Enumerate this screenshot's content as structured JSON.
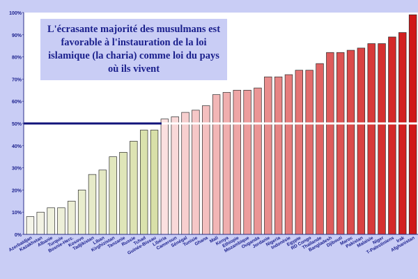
{
  "chart_data": {
    "type": "bar",
    "title": "L'écrasante majorité des musulmans est\nfavorable à l'instauration de la loi\nislamique (la charia) comme loi du pays\noù ils vivent",
    "categories": [
      "Azerbaïdjan",
      "Kazakhstan",
      "Albanie",
      "Turquie",
      "Bosnie-Herz.",
      "Kosovo",
      "Tadjikistan",
      "Liban",
      "Kirghizistan",
      "Tanzanie",
      "Russie",
      "Tchad",
      "Guinée-Bissau",
      "Libéria",
      "Cameroun",
      "Sénégal",
      "Tunisie",
      "Ghana",
      "Mali",
      "Kenya",
      "Ethiopie",
      "Mozambique",
      "Ouganda",
      "Jordanie",
      "Nigeria",
      "Indonésie",
      "Egypte",
      "RD Congo",
      "Thaïlande",
      "Bangladesh",
      "Djibouti",
      "Maroc",
      "Pakistan",
      "Malaisie",
      "Niger",
      "T-Palestiniens",
      "Irak",
      "Afghanistan"
    ],
    "values": [
      8,
      10,
      12,
      12,
      15,
      20,
      27,
      29,
      35,
      37,
      42,
      47,
      47,
      52,
      53,
      55,
      56,
      58,
      63,
      64,
      65,
      65,
      66,
      71,
      71,
      72,
      74,
      74,
      77,
      82,
      82,
      83,
      84,
      86,
      86,
      89,
      91,
      99
    ],
    "ylim": [
      0,
      100
    ],
    "yticks": [
      "0%",
      "10%",
      "20%",
      "30%",
      "40%",
      "50%",
      "60%",
      "70%",
      "80%",
      "90%",
      "100%"
    ],
    "reference_line": 50,
    "grid": false,
    "colors": {
      "background": "#c9cdf5",
      "plot": "#ffffff",
      "axis": "#2a2f8a",
      "text": "#1a1f8c",
      "reference_left": "#11137a",
      "reference_right": "#ffffff",
      "low_start": "#f4f4e8",
      "low_end": "#d8e0a8",
      "high_start": "#fbe0e0",
      "high_end": "#d01818"
    }
  }
}
